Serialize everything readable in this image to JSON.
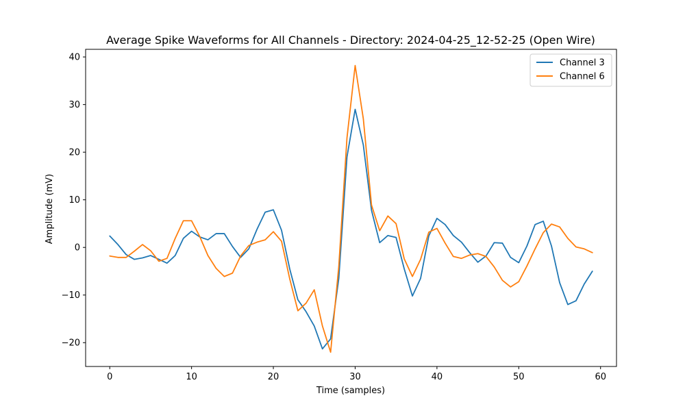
{
  "chart_data": {
    "type": "line",
    "title": "Average Spike Waveforms for All Channels - Directory: 2024-04-25_12-52-25 (Open Wire)",
    "xlabel": "Time (samples)",
    "ylabel": "Amplitude (mV)",
    "xlim": [
      -2.95,
      61.95
    ],
    "ylim": [
      -25.0,
      41.6
    ],
    "xticks": [
      0,
      10,
      20,
      30,
      40,
      50,
      60
    ],
    "yticks": [
      -20,
      -10,
      0,
      10,
      20,
      30,
      40
    ],
    "grid": false,
    "legend_position": "top-right",
    "x": [
      0,
      1,
      2,
      3,
      4,
      5,
      6,
      7,
      8,
      9,
      10,
      11,
      12,
      13,
      14,
      15,
      16,
      17,
      18,
      19,
      20,
      21,
      22,
      23,
      24,
      25,
      26,
      27,
      28,
      29,
      30,
      31,
      32,
      33,
      34,
      35,
      36,
      37,
      38,
      39,
      40,
      41,
      42,
      43,
      44,
      45,
      46,
      47,
      48,
      49,
      50,
      51,
      52,
      53,
      54,
      55,
      56,
      57,
      58,
      59
    ],
    "series": [
      {
        "name": "Channel 3",
        "color": "#1f77b4",
        "values": [
          2.4,
          0.6,
          -1.5,
          -2.5,
          -2.2,
          -1.7,
          -2.5,
          -3.3,
          -1.7,
          1.9,
          3.4,
          2.2,
          1.6,
          2.9,
          2.9,
          0.2,
          -2.1,
          -0.3,
          3.8,
          7.4,
          7.9,
          3.6,
          -4.5,
          -11.0,
          -13.5,
          -16.5,
          -21.3,
          -19.2,
          -6.5,
          19.0,
          29.0,
          21.5,
          7.8,
          1.0,
          2.5,
          2.1,
          -4.5,
          -10.2,
          -6.5,
          2.4,
          6.1,
          4.8,
          2.5,
          1.1,
          -1.1,
          -3.1,
          -1.8,
          1.0,
          0.9,
          -2.1,
          -3.2,
          0.3,
          4.8,
          5.5,
          0.3,
          -7.4,
          -12.0,
          -11.2,
          -7.7,
          -5.0
        ]
      },
      {
        "name": "Channel 6",
        "color": "#ff7f0e",
        "values": [
          -1.8,
          -2.1,
          -2.1,
          -0.8,
          0.6,
          -0.7,
          -2.9,
          -2.3,
          1.9,
          5.6,
          5.6,
          2.3,
          -1.7,
          -4.4,
          -6.1,
          -5.4,
          -1.8,
          0.4,
          1.1,
          1.6,
          3.3,
          1.3,
          -6.6,
          -13.3,
          -11.7,
          -8.9,
          -16.5,
          -22.0,
          -4.0,
          23.0,
          38.2,
          27.0,
          8.9,
          3.5,
          6.6,
          5.0,
          -2.4,
          -6.1,
          -2.5,
          3.2,
          4.0,
          0.9,
          -1.9,
          -2.3,
          -1.6,
          -1.3,
          -1.9,
          -4.1,
          -6.9,
          -8.3,
          -7.2,
          -3.9,
          -0.3,
          3.1,
          4.9,
          4.3,
          1.9,
          0.1,
          -0.3,
          -1.1
        ]
      }
    ]
  }
}
